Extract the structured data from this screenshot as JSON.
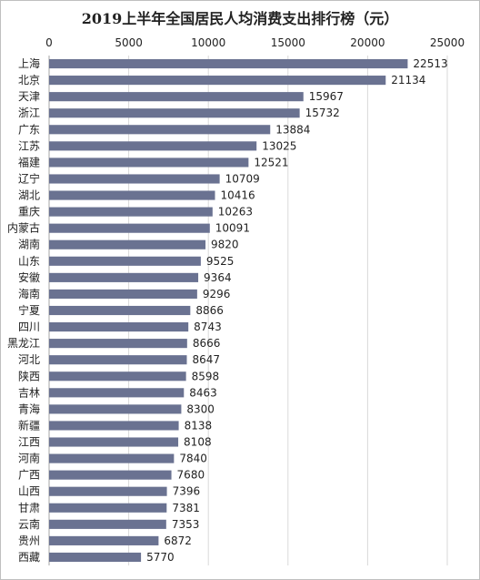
{
  "chart_data": {
    "type": "bar",
    "orientation": "horizontal",
    "title": "2019上半年全国居民人均消费支出排行榜（元）",
    "xlim": [
      0,
      25000
    ],
    "x_ticks": [
      "0",
      "5000",
      "10000",
      "15000",
      "20000",
      "25000"
    ],
    "x_axis_position": "top",
    "grid": true,
    "bar_color": "#6a7291",
    "categories": [
      "上海",
      "北京",
      "天津",
      "浙江",
      "广东",
      "江苏",
      "福建",
      "辽宁",
      "湖北",
      "重庆",
      "内蒙古",
      "湖南",
      "山东",
      "安徽",
      "海南",
      "宁夏",
      "四川",
      "黑龙江",
      "河北",
      "陕西",
      "吉林",
      "青海",
      "新疆",
      "江西",
      "河南",
      "广西",
      "山西",
      "甘肃",
      "云南",
      "贵州",
      "西藏"
    ],
    "values": [
      22513,
      21134,
      15967,
      15732,
      13884,
      13025,
      12521,
      10709,
      10416,
      10263,
      10091,
      9820,
      9525,
      9364,
      9296,
      8866,
      8743,
      8666,
      8647,
      8598,
      8463,
      8300,
      8138,
      8108,
      7840,
      7680,
      7396,
      7381,
      7353,
      6872,
      5770
    ]
  }
}
